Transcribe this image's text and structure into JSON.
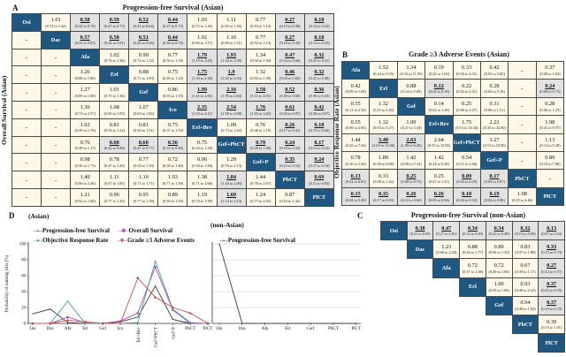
{
  "colors": {
    "diagonal_cell": "#205780",
    "significant_bg": "#e2e2e2",
    "default_bg": "#fdf8e7",
    "border": "#4a4a4a",
    "pfs_line": "#3b3b3b",
    "os_line": "#a050c0",
    "orr_line": "#4f9a9a",
    "ae_line": "#c0504d"
  },
  "panelA": {
    "label": "A",
    "title": "Progression-free Survival (Asian)",
    "side_label": "Overall Survival (Asian)",
    "treatments": [
      "Osi",
      "Dac",
      "Afa",
      "Erl",
      "Gef",
      "Ico",
      "Erl+Bev",
      "Gef+PbCT",
      "Gef+P",
      "PbCT",
      "PlCT"
    ],
    "matrix": [
      [
        "D",
        [
          "1.01",
          "(0.72 to 1.42)",
          0
        ],
        [
          "0.58",
          "(0.42 to 0.78)",
          1
        ],
        [
          "0.59",
          "(0.47 to 0.73)",
          1
        ],
        [
          "0.52",
          "(0.41 to 0.64)",
          1
        ],
        [
          "0.44",
          "(0.27 to 0.73)",
          1
        ],
        [
          "1.03",
          "(0.72 to 1.45)",
          0
        ],
        [
          "1.11",
          "(0.83 to 1.50)",
          0
        ],
        [
          "0.77",
          "(0.53 to 1.12)",
          0
        ],
        [
          "0.27",
          "(0.19 to 0.38)",
          1
        ],
        [
          "0.18",
          "(0.14 to 0.24)",
          1
        ]
      ],
      [
        "-",
        "D",
        [
          "0.57",
          "(0.41 to 0.81)",
          1
        ],
        [
          "0.58",
          "(0.42 to 0.81)",
          1
        ],
        [
          "0.51",
          "(0.40 to 0.66)",
          1
        ],
        [
          "0.44",
          "(0.26 to 0.74)",
          1
        ],
        [
          "1.02",
          "(0.66 to 1.57)",
          0
        ],
        [
          "1.10",
          "(0.80 to 1.51)",
          0
        ],
        [
          "0.77",
          "(0.52 to 1.13)",
          0
        ],
        [
          "0.27",
          "(0.18 to 0.39)",
          1
        ],
        [
          "0.18",
          "(0.13 to 0.25)",
          1
        ]
      ],
      [
        "-",
        "-",
        "D",
        [
          "1.02",
          "(0.76 to 1.36)",
          0
        ],
        [
          "0.90",
          "(0.72 to 1.12)",
          0
        ],
        [
          "0.77",
          "(0.50 to 1.18)",
          0
        ],
        [
          "1.79",
          "(1.19 to 2.65)",
          1
        ],
        [
          "1.93",
          "(1.44 to 2.58)",
          1
        ],
        [
          "1.34",
          "(0.92 to 1.94)",
          0
        ],
        [
          "0.47",
          "(0.34 to 0.66)",
          1
        ],
        [
          "0.32",
          "(0.25 to 0.41)",
          1
        ]
      ],
      [
        "-",
        "-",
        [
          "1.26",
          "(0.88 to 1.80)",
          0
        ],
        "D",
        [
          "0.88",
          "(0.71 to 1.09)",
          0
        ],
        [
          "0.75",
          "(0.46 to 1.24)",
          0
        ],
        [
          "1.75",
          "(1.33 to 2.30)",
          1
        ],
        [
          "1.9",
          "(1.42 to 2.54)",
          1
        ],
        [
          "1.32",
          "(0.92 to 1.90)",
          0
        ],
        [
          "0.46",
          "(0.33 to 0.65)",
          1
        ],
        [
          "0.32",
          "(0.25 to 0.40)",
          1
        ]
      ],
      [
        "-",
        "-",
        [
          "1.27",
          "(0.89 to 1.80)",
          0
        ],
        [
          "1.01",
          "(0.75 to 1.36)",
          0
        ],
        "D",
        [
          "0.86",
          "(0.55 to 1.35)",
          0
        ],
        [
          "1.99",
          "(1.41 to 2.81)",
          1
        ],
        [
          "2.16",
          "(1.76 to 2.64)",
          1
        ],
        [
          "1.50",
          "(1.11 to 2.01)",
          1
        ],
        [
          "0.52",
          "(0.39 to 0.69)",
          1
        ],
        [
          "0.36",
          "(0.30 to 0.43)",
          1
        ]
      ],
      [
        "-",
        "-",
        [
          "1.36",
          "(0.72 to 2.57)",
          0
        ],
        [
          "1.08",
          "(0.60 to 1.95)",
          0
        ],
        [
          "1.07",
          "(0.63 to 1.82)",
          0
        ],
        "D",
        [
          "2.35",
          "(1.33 to 4.11)",
          1
        ],
        [
          "2.54",
          "(1.58 to 4.08)",
          1
        ],
        [
          "1.76",
          "(1.03 to 3.02)",
          1
        ],
        [
          "0.61",
          "(0.43 to 0.87)",
          1
        ],
        [
          "0.42",
          "(0.26 to 0.67)",
          1
        ]
      ],
      [
        "-",
        "-",
        [
          "1.02",
          "(0.59 to 1.76)",
          0
        ],
        [
          "0.81",
          "(0.54 to 1.22)",
          0
        ],
        [
          "0.81",
          "(0.50 to 1.31)",
          0
        ],
        [
          "0.75",
          "(0.37 to 1.55)",
          0
        ],
        "D",
        [
          "1.09",
          "(0.73 to 1.62)",
          0
        ],
        [
          "0.76",
          "(0.48 to 1.19)",
          0
        ],
        [
          "0.26",
          "(0.17 to 0.41)",
          1
        ],
        [
          "0.18",
          "(0.13 to 0.26)",
          1
        ]
      ],
      [
        "-",
        "-",
        [
          "0.76",
          "(0.49 to 1.17)",
          0
        ],
        [
          "0.60",
          "(0.42 to 0.86)",
          1
        ],
        [
          "0.60",
          "(0.47 to 0.77)",
          1
        ],
        [
          "0.56",
          "(0.33 to 0.96)",
          1
        ],
        [
          "0.75",
          "(0.43 to 1.29)",
          0
        ],
        "D",
        [
          "0.70",
          "(0.49 to 1.00)",
          1
        ],
        [
          "0.24",
          "(0.18 to 0.33)",
          1
        ],
        [
          "0.17",
          "(0.13 to 0.22)",
          1
        ]
      ],
      [
        "-",
        "-",
        [
          "0.98",
          "(0.56 to 1.71)",
          0
        ],
        [
          "0.78",
          "(0.47 to 1.28)",
          0
        ],
        [
          "0.77",
          "(0.50 to 1.19)",
          0
        ],
        [
          "0.72",
          "(0.38 to 1.40)",
          0
        ],
        [
          "0.96",
          "(0.50 to 1.84)",
          0
        ],
        [
          "1.29",
          "(0.78 to 2.13)",
          0
        ],
        "D",
        [
          "0.35",
          "(0.23 to 0.53)",
          1
        ],
        [
          "0.24",
          "(0.17 to 0.34)",
          1
        ]
      ],
      [
        "-",
        "-",
        [
          "1.40",
          "(0.80 to 2.46)",
          0
        ],
        [
          "1.11",
          "(0.67 to 1.85)",
          0
        ],
        [
          "1.10",
          "(0.71 to 1.71)",
          0
        ],
        [
          "1.03",
          "(0.77 to 1.39)",
          0
        ],
        [
          "1.38",
          "(0.71 to 2.66)",
          0
        ],
        [
          "1.84",
          "(1.18 to 2.89)",
          1
        ],
        [
          "1.44",
          "(0.78 to 2.67)",
          0
        ],
        "D",
        [
          "0.69",
          "(0.51 to 0.93)",
          1
        ]
      ],
      [
        "-",
        "-",
        [
          "1.21",
          "(0.92 to 1.60)",
          0
        ],
        [
          "0.96",
          "(0.77 to 1.20)",
          0
        ],
        [
          "0.95",
          "(0.77 to 1.18)",
          0
        ],
        [
          "0.89",
          "(0.50 to 1.59)",
          0
        ],
        [
          "1.19",
          "(0.74 to 1.90)",
          0
        ],
        [
          "1.60",
          "(1.14 to 2.23)",
          1
        ],
        [
          "1.24",
          "(0.77 to 2.01)",
          0
        ],
        [
          "0.87",
          "(0.53 to 1.42)",
          0
        ],
        "D"
      ]
    ]
  },
  "panelB": {
    "label": "B",
    "title": "Grade ≥3 Adverse Events (Asian)",
    "side_label": "Objective Response Rate (Asian)",
    "treatments": [
      "Afa",
      "Erl",
      "Gef",
      "Erl+Bev",
      "Gef+PbCT",
      "Gef+P",
      "PbCT",
      "PlCT"
    ],
    "matrix": [
      [
        "D",
        [
          "1.52",
          "(0.24 to 9.55)",
          0
        ],
        [
          "1.34",
          "(0.16 to 11.05)",
          0
        ],
        [
          "0.19",
          "(0.02 to 1.63)",
          0
        ],
        [
          "0.33",
          "(0.03 to 4.31)",
          0
        ],
        [
          "0.42",
          "(0.03 to 5.82)",
          0
        ],
        "-",
        [
          "0.37",
          "(0.09 to 1.63)",
          0
        ]
      ],
      [
        [
          "0.42",
          "(0.09 to 1.68)",
          0
        ],
        "D",
        [
          "0.88",
          "(0.14 to 5.69)",
          0
        ],
        [
          "0.12",
          "(0.04 to 0.39)",
          1
        ],
        [
          "0.22",
          "(0.02 to 2.31)",
          0
        ],
        [
          "0.28",
          "(0.02 to 3.16)",
          0
        ],
        "-",
        [
          "0.24",
          "(0.08 to 0.73)",
          1
        ]
      ],
      [
        [
          "0.55",
          "(0.12 to 2.50)",
          0
        ],
        [
          "1.32",
          "(0.55 to 3.40)",
          0
        ],
        "D",
        [
          "0.14",
          "(0.02 to 1.28)",
          0
        ],
        [
          "0.25",
          "(0.06 to 1.07)",
          0
        ],
        [
          "0.31",
          "(0.06 to 1.51)",
          0
        ],
        "-",
        [
          "0.28",
          "(0.06 to 1.25)",
          0
        ]
      ],
      [
        [
          "0.55",
          "(0.09 to 2.82)",
          0
        ],
        [
          "1.32",
          "(0.53 to 3.27)",
          0
        ],
        [
          "1.00",
          "(0.27 to 3.44)",
          0
        ],
        "D",
        [
          "1.75",
          "(0.53 to 24.34)",
          0
        ],
        [
          "2.22",
          "(0.35 to 32.00)",
          0
        ],
        "-",
        [
          "1.98",
          "(0.41 to 9.57)",
          0
        ]
      ],
      [
        [
          "1.44",
          "(0.25 to 7.66)",
          0
        ],
        [
          "3.48",
          "(1.05 to 12.66)",
          1
        ],
        [
          "2.63",
          "(1.09 to 6.28)",
          1
        ],
        [
          "2.64",
          "(0.55 to 12.80)",
          0
        ],
        "D",
        [
          "1.27",
          "(0.15 to 10.90)",
          0
        ],
        "-",
        [
          "1.13",
          "(0.14 to 9.28)",
          0
        ]
      ],
      [
        [
          "0.78",
          "(0.10 to 5.30)",
          0
        ],
        [
          "1.89",
          "(0.39 to 9.88)",
          0
        ],
        [
          "1.42",
          "(0.38 to 5.32)",
          0
        ],
        [
          "1.42",
          "(0.24 to 9.28)",
          0
        ],
        [
          "0.54",
          "(0.11 to 2.66)",
          0
        ],
        "D",
        "-",
        [
          "0.89",
          "(0.10 to 7.86)",
          0
        ]
      ],
      [
        [
          "0.13",
          "(0.02 to 0.81)",
          1
        ],
        [
          "0.33",
          "(0.08 to 1.42)",
          0
        ],
        [
          "0.25",
          "(0.08 to 0.75)",
          1
        ],
        [
          "0.25",
          "(0.07 to 1.41)",
          0
        ],
        [
          "0.09",
          "(0.03 to 0.29)",
          1
        ],
        [
          "0.17",
          "(0.03 to 0.97)",
          1
        ],
        "D",
        "-"
      ],
      [
        [
          "0.15",
          "(0.04 to 0.49)",
          1
        ],
        [
          "0.35",
          "(0.17 to 0.83)",
          1
        ],
        [
          "0.26",
          "(0.12 to 0.60)",
          1
        ],
        [
          "0.26",
          "(0.09 to 0.94)",
          1
        ],
        [
          "0.10",
          "(0.03 to 0.34)",
          1
        ],
        [
          "0.19",
          "(0.04 to 0.88)",
          1
        ],
        [
          "1.08",
          "(0.25 to 4.46)",
          0
        ],
        "D"
      ]
    ]
  },
  "panelC": {
    "label": "C",
    "title": "Progression-free Survival (non-Asian)",
    "treatments": [
      "Osi",
      "Dac",
      "Afa",
      "Erl",
      "Gef",
      "PbCT",
      "PlCT"
    ],
    "matrix": [
      [
        "D",
        [
          "0.38",
          "(0.21 to 0.69)",
          1
        ],
        [
          "0.47",
          "(0.27 to 0.81)",
          1
        ],
        [
          "0.34",
          "(0.23 to 0.49)",
          1
        ],
        [
          "0.34",
          "(0.23 to 0.49)",
          1
        ],
        [
          "0.32",
          "(0.15 to 0.69)",
          1
        ],
        [
          "0.13",
          "(0.07 to 0.22)",
          1
        ]
      ],
      [
        null,
        "D",
        [
          "1.23",
          "(0.68 to 2.24)",
          0
        ],
        [
          "0.88",
          "(0.44 to 1.77)",
          0
        ],
        [
          "0.89",
          "(0.56 to 1.35)",
          0
        ],
        [
          "0.83",
          "(0.37 to 1.88)",
          0
        ],
        [
          "0.33",
          "(0.15 to 0.73)",
          1
        ]
      ],
      [
        null,
        null,
        "D",
        [
          "0.72",
          "(0.37 to 1.38)",
          0
        ],
        [
          "0.72",
          "(0.49 to 1.06)",
          0
        ],
        [
          "0.67",
          "(0.39 to 1.17)",
          0
        ],
        [
          "0.27",
          "(0.12 to 0.57)",
          1
        ]
      ],
      [
        null,
        null,
        null,
        "D",
        [
          "1.00",
          "(0.59 to 1.69)",
          0
        ],
        [
          "0.93",
          "(0.40 to 2.22)",
          0
        ],
        [
          "0.37",
          "(0.25 to 0.55)",
          1
        ]
      ],
      [
        null,
        null,
        null,
        null,
        "D",
        [
          "0.94",
          "(0.48 to 1.84)",
          0
        ],
        [
          "0.37",
          "(0.19 to 0.72)",
          1
        ]
      ],
      [
        null,
        null,
        null,
        null,
        null,
        "D",
        [
          "0.39",
          "(0.15 to 1.01)",
          0
        ]
      ],
      [
        null,
        null,
        null,
        null,
        null,
        null,
        "D"
      ]
    ]
  },
  "panelD": {
    "label": "D",
    "asian_title": "(Asian)",
    "nonasian_title": "(non-Asian)",
    "ylabel": "Probability of ranking first (%)"
  },
  "chart_data": [
    {
      "type": "line",
      "title": "(Asian)",
      "ylabel": "Probability of ranking first (%)",
      "ylim": [
        0,
        100
      ],
      "yticks": [
        0,
        20,
        40,
        60,
        80,
        100
      ],
      "grid": false,
      "legend_position": "top",
      "categories": [
        "Osi",
        "Dac",
        "Afa",
        "Erl",
        "Gef",
        "Ico",
        "Erl+Bev",
        "Gef+PbCT",
        "Gef+P",
        "PbCT",
        "PlCT"
      ],
      "series": [
        {
          "name": "Progression-free Survival",
          "color": "#3b3b3b",
          "symbol": "+",
          "values": [
            12,
            18,
            1,
            0,
            0,
            2,
            8,
            47,
            5,
            0,
            0
          ]
        },
        {
          "name": "Overall Survival",
          "color": "#a050c0",
          "symbol": "✱",
          "values": [
            0,
            0,
            8,
            1,
            0,
            3,
            13,
            71,
            17,
            0,
            0
          ]
        },
        {
          "name": "Objective Response Rate",
          "color": "#4f9a9a",
          "symbol": "●",
          "values": [
            0,
            0,
            28,
            0,
            0,
            0,
            1,
            78,
            18,
            1,
            0
          ]
        },
        {
          "name": "Grade ≥3 Adverse Events",
          "color": "#c0504d",
          "symbol": "✚",
          "values": [
            0,
            0,
            4,
            2,
            0,
            0,
            57,
            33,
            20,
            13,
            0
          ]
        }
      ]
    },
    {
      "type": "line",
      "title": "(non-Asian)",
      "ylim": [
        0,
        100
      ],
      "yticks": [
        0,
        20,
        40,
        60,
        80,
        100
      ],
      "grid": true,
      "categories": [
        "Osi",
        "Dac",
        "Afa",
        "Erl",
        "Gef",
        "PbCT",
        "PlCT"
      ],
      "series": [
        {
          "name": "Progression-free Survival",
          "color": "#3b3b3b",
          "symbol": "+",
          "values": [
            100,
            0,
            0,
            0,
            0,
            0,
            0
          ]
        }
      ]
    },
    {
      "type": "table",
      "title": "Progression-free Survival (Asian) / Overall Survival (Asian)",
      "data_ref": "panelA.matrix"
    },
    {
      "type": "table",
      "title": "Grade ≥3 Adverse Events (Asian) / Objective Response Rate (Asian)",
      "data_ref": "panelB.matrix"
    },
    {
      "type": "table",
      "title": "Progression-free Survival (non-Asian)",
      "data_ref": "panelC.matrix"
    }
  ]
}
